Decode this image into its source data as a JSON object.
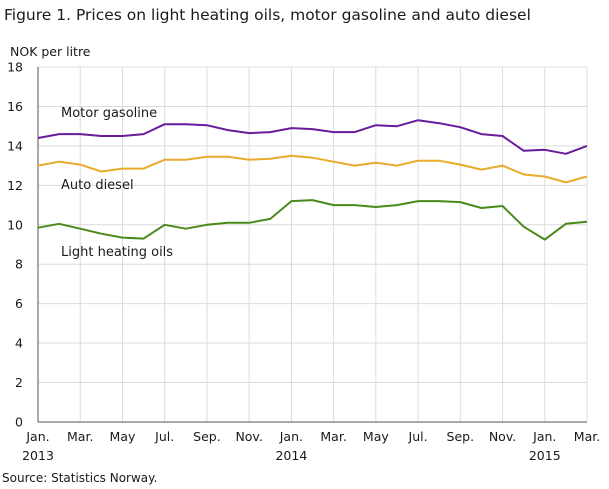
{
  "title": "Figure 1. Prices on light heating oils, motor gasoline and auto diesel",
  "source": "Source: Statistics Norway.",
  "colors": {
    "motor_gasoline": "#6a1b9a",
    "auto_diesel": "#e8ac2b",
    "light_heating_oils": "#4a8a1a",
    "grid": "#dcdcdc",
    "axis": "#555555"
  },
  "chart_data": {
    "type": "line",
    "ylabel": "NOK per litre",
    "ylim": [
      0,
      18
    ],
    "yticks": [
      0,
      2,
      4,
      6,
      8,
      10,
      12,
      14,
      16,
      18
    ],
    "grid": true,
    "legend": "inline labels",
    "x": [
      "2013-01",
      "2013-02",
      "2013-03",
      "2013-04",
      "2013-05",
      "2013-06",
      "2013-07",
      "2013-08",
      "2013-09",
      "2013-10",
      "2013-11",
      "2013-12",
      "2014-01",
      "2014-02",
      "2014-03",
      "2014-04",
      "2014-05",
      "2014-06",
      "2014-07",
      "2014-08",
      "2014-09",
      "2014-10",
      "2014-11",
      "2014-12",
      "2015-01",
      "2015-02",
      "2015-03"
    ],
    "tick_labels": [
      {
        "index": 0,
        "month": "Jan.",
        "year": "2013"
      },
      {
        "index": 2,
        "month": "Mar.",
        "year": ""
      },
      {
        "index": 4,
        "month": "May",
        "year": ""
      },
      {
        "index": 6,
        "month": "Jul.",
        "year": ""
      },
      {
        "index": 8,
        "month": "Sep.",
        "year": ""
      },
      {
        "index": 10,
        "month": "Nov.",
        "year": ""
      },
      {
        "index": 12,
        "month": "Jan.",
        "year": "2014"
      },
      {
        "index": 14,
        "month": "Mar.",
        "year": ""
      },
      {
        "index": 16,
        "month": "May",
        "year": ""
      },
      {
        "index": 18,
        "month": "Jul.",
        "year": ""
      },
      {
        "index": 20,
        "month": "Sep.",
        "year": ""
      },
      {
        "index": 22,
        "month": "Nov.",
        "year": ""
      },
      {
        "index": 24,
        "month": "Jan.",
        "year": "2015"
      },
      {
        "index": 26,
        "month": "Mar.",
        "year": ""
      }
    ],
    "series": [
      {
        "key": "motor_gasoline",
        "name": "Motor gasoline",
        "values": [
          14.4,
          14.6,
          14.6,
          14.5,
          14.5,
          14.6,
          15.1,
          15.1,
          15.05,
          14.8,
          14.65,
          14.7,
          14.9,
          14.85,
          14.7,
          14.7,
          15.05,
          15.0,
          15.3,
          15.15,
          14.95,
          14.6,
          14.5,
          13.75,
          13.8,
          13.6,
          14.0
        ]
      },
      {
        "key": "auto_diesel",
        "name": "Auto diesel",
        "values": [
          13.0,
          13.2,
          13.05,
          12.7,
          12.85,
          12.85,
          13.3,
          13.3,
          13.45,
          13.45,
          13.3,
          13.35,
          13.5,
          13.4,
          13.2,
          13.0,
          13.15,
          13.0,
          13.25,
          13.25,
          13.05,
          12.8,
          13.0,
          12.55,
          12.45,
          12.15,
          12.45
        ]
      },
      {
        "key": "light_heating_oils",
        "name": "Light heating oils",
        "values": [
          9.85,
          10.05,
          9.8,
          9.55,
          9.35,
          9.3,
          10.0,
          9.8,
          10.0,
          10.1,
          10.1,
          10.3,
          11.2,
          11.25,
          11.0,
          11.0,
          10.9,
          11.0,
          11.2,
          11.2,
          11.15,
          10.85,
          10.95,
          9.9,
          9.25,
          10.05,
          10.15
        ]
      }
    ]
  }
}
